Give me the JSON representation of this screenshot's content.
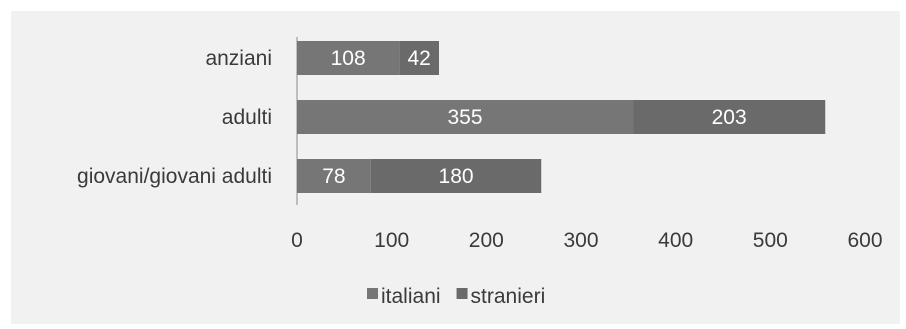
{
  "chart_data": {
    "type": "bar",
    "orientation": "horizontal",
    "stacked": true,
    "categories": [
      "anziani",
      "adulti",
      "giovani/giovani adulti"
    ],
    "series": [
      {
        "name": "italiani",
        "values": [
          108,
          355,
          78
        ],
        "color": "#767676"
      },
      {
        "name": "stranieri",
        "values": [
          42,
          203,
          180
        ],
        "color": "#6a6a6a"
      }
    ],
    "xticks": [
      "0",
      "100",
      "200",
      "300",
      "400",
      "500",
      "600"
    ],
    "xlim": [
      0,
      600
    ],
    "grid": false,
    "legend": "bottom",
    "data_labels": true,
    "title": "",
    "xlabel": "",
    "ylabel": ""
  }
}
